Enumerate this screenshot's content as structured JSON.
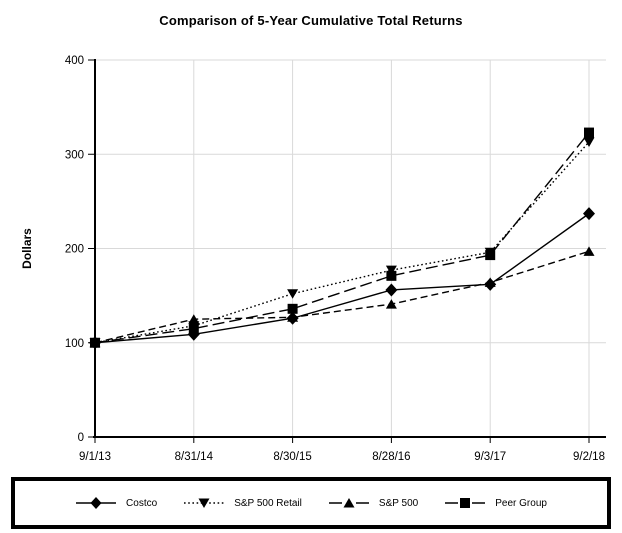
{
  "page": {
    "title": "Comparison of 5-Year Cumulative Total Returns"
  },
  "chart_data": {
    "type": "line",
    "title": "Comparison of 5-Year Cumulative Total Returns",
    "xlabel": "",
    "ylabel": "Dollars",
    "ylim": [
      0,
      400
    ],
    "yticks": [
      0,
      100,
      200,
      300,
      400
    ],
    "grid": true,
    "legend_position": "bottom-boxed",
    "categories": [
      "9/1/13",
      "8/31/14",
      "8/30/15",
      "8/28/16",
      "9/3/17",
      "9/2/18"
    ],
    "series": [
      {
        "name": "Costco",
        "marker": "diamond",
        "line_style": "solid",
        "values": [
          100,
          109,
          126,
          156,
          162,
          237
        ]
      },
      {
        "name": "S&P 500 Retail",
        "marker": "triangle-down",
        "line_style": "dotted",
        "values": [
          100,
          118,
          152,
          177,
          196,
          313
        ]
      },
      {
        "name": "S&P 500",
        "marker": "triangle-up",
        "line_style": "dashed",
        "values": [
          100,
          125,
          127,
          141,
          164,
          197
        ]
      },
      {
        "name": "Peer Group",
        "marker": "square",
        "line_style": "long-dash",
        "values": [
          100,
          115,
          136,
          171,
          193,
          323
        ]
      }
    ],
    "colors": {
      "series": "#000000",
      "grid": "#d9d9d9",
      "axis": "#000000",
      "background": "#ffffff"
    }
  }
}
